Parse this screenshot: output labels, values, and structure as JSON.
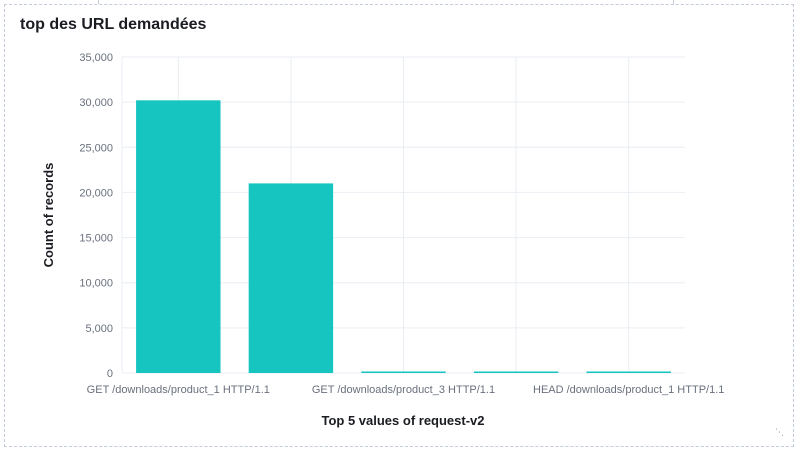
{
  "panel": {
    "title": "top des URL demandées"
  },
  "colors": {
    "bar": "#16c5c0",
    "grid": "#e9edf3",
    "axis_text": "#69707d",
    "title_text": "#1a1c21"
  },
  "chart_data": {
    "type": "bar",
    "xlabel": "Top 5 values of request-v2",
    "ylabel": "Count of records",
    "ylim": [
      0,
      35000
    ],
    "yticks": [
      0,
      5000,
      10000,
      15000,
      20000,
      25000,
      30000,
      35000
    ],
    "ytick_labels": [
      "0",
      "5,000",
      "10,000",
      "15,000",
      "20,000",
      "25,000",
      "30,000",
      "35,000"
    ],
    "grid": true,
    "categories": [
      "GET /downloads/product_1 HTTP/1.1",
      "",
      "GET /downloads/product_3 HTTP/1.1",
      "",
      "HEAD /downloads/product_1 HTTP/1.1"
    ],
    "values": [
      30200,
      21000,
      80,
      60,
      50
    ]
  }
}
